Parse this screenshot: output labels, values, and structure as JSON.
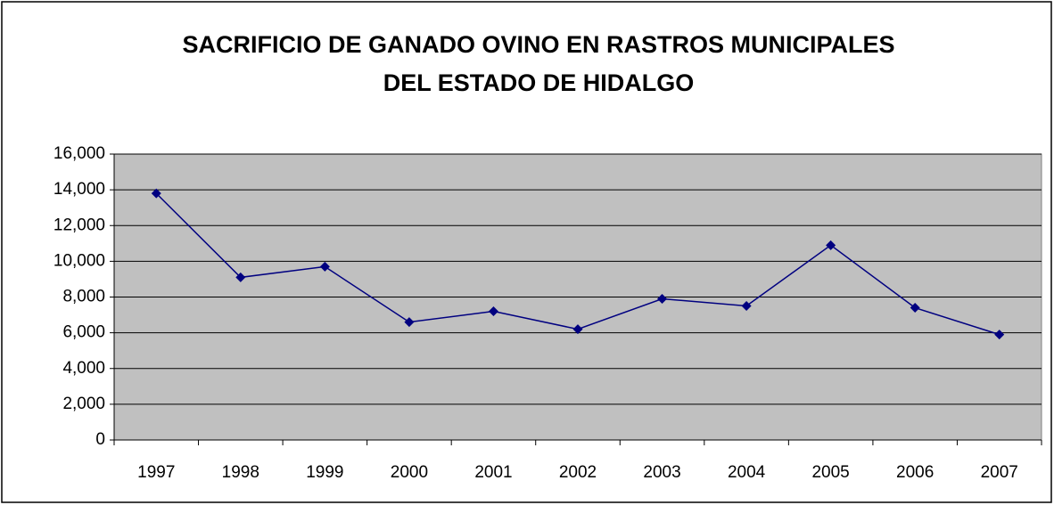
{
  "chart_data": {
    "type": "line",
    "title": [
      "SACRIFICIO DE GANADO OVINO EN RASTROS MUNICIPALES",
      "DEL ESTADO DE HIDALGO"
    ],
    "categories": [
      "1997",
      "1998",
      "1999",
      "2000",
      "2001",
      "2002",
      "2003",
      "2004",
      "2005",
      "2006",
      "2007"
    ],
    "series": [
      {
        "color": "#000080",
        "values": [
          13800,
          9100,
          9700,
          6600,
          7200,
          6200,
          7900,
          7500,
          10900,
          7400,
          5900
        ]
      }
    ],
    "ylim": [
      0,
      16000
    ],
    "yticks": [
      0,
      {
        "value": 2000,
        "label": "2,000"
      },
      {
        "value": 4000,
        "label": "4,000"
      },
      {
        "value": 6000,
        "label": "6,000"
      },
      {
        "value": 8000,
        "label": "8,000"
      },
      {
        "value": 10000,
        "label": "10,000"
      },
      {
        "value": 12000,
        "label": "12,000"
      },
      {
        "value": 14000,
        "label": "14,000"
      },
      {
        "value": 16000,
        "label": "16,000"
      }
    ],
    "grid": true,
    "plot_background": "#c0c0c0"
  }
}
